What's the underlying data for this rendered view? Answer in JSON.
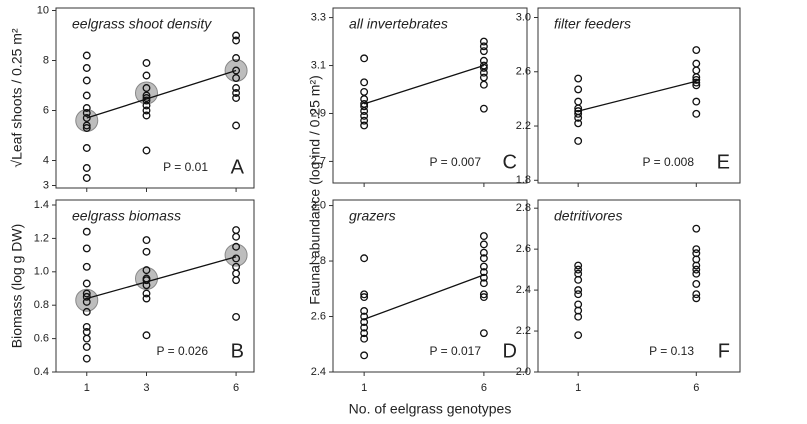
{
  "chart_data": [
    {
      "type": "scatter",
      "title": "eelgrass shoot density",
      "ylabel": "√Leaf shoots / 0.25 m²",
      "annotation": "P = 0.01",
      "panel": "A",
      "x": [
        1,
        1,
        1,
        1,
        1,
        1,
        1,
        1,
        1,
        1,
        1,
        1,
        3,
        3,
        3,
        3,
        3,
        3,
        3,
        3,
        3,
        3,
        6,
        6,
        6,
        6,
        6,
        6,
        6,
        6,
        6
      ],
      "values": [
        8.2,
        7.7,
        7.2,
        6.6,
        6.1,
        5.9,
        5.7,
        5.4,
        5.3,
        4.5,
        3.7,
        3.3,
        7.9,
        7.4,
        6.9,
        6.6,
        6.5,
        6.4,
        6.2,
        6.0,
        5.8,
        4.4,
        9.0,
        8.8,
        8.1,
        7.6,
        7.3,
        6.9,
        6.7,
        6.5,
        5.4
      ],
      "means": {
        "x": [
          1,
          3,
          6
        ],
        "values": [
          5.6,
          6.7,
          7.6
        ]
      },
      "fit": {
        "x": [
          1,
          6
        ],
        "values": [
          5.7,
          7.6
        ]
      },
      "xlim": [
        -0.03,
        6.6
      ],
      "xticks": [
        1,
        3,
        6
      ],
      "ylim": [
        2.9,
        10.1
      ],
      "yticks": [
        3,
        4,
        6,
        8,
        10
      ]
    },
    {
      "type": "scatter",
      "title": "eelgrass biomass",
      "ylabel": "Biomass (log g DW)",
      "xlabel": "No. of eelgrass genotypes",
      "annotation": "P = 0.026",
      "panel": "B",
      "x": [
        1,
        1,
        1,
        1,
        1,
        1,
        1,
        1,
        1,
        1,
        1,
        1,
        1,
        3,
        3,
        3,
        3,
        3,
        3,
        3,
        3,
        3,
        6,
        6,
        6,
        6,
        6,
        6,
        6,
        6
      ],
      "values": [
        1.24,
        1.14,
        1.03,
        0.93,
        0.87,
        0.85,
        0.82,
        0.76,
        0.67,
        0.64,
        0.6,
        0.55,
        0.48,
        1.19,
        1.12,
        1.01,
        0.96,
        0.95,
        0.92,
        0.87,
        0.84,
        0.62,
        1.25,
        1.21,
        1.15,
        1.08,
        1.03,
        0.99,
        0.95,
        0.73
      ],
      "means": {
        "x": [
          1,
          3,
          6
        ],
        "values": [
          0.83,
          0.96,
          1.1
        ]
      },
      "fit": {
        "x": [
          1,
          6
        ],
        "values": [
          0.84,
          1.09
        ]
      },
      "xlim": [
        -0.03,
        6.6
      ],
      "xticks": [
        1,
        3,
        6
      ],
      "ylim": [
        0.4,
        1.43
      ],
      "yticks": [
        0.4,
        0.6,
        0.8,
        {
          "value": 1,
          "label": "1.0"
        },
        1.2,
        1.4
      ]
    },
    {
      "type": "scatter",
      "title": "all invertebrates",
      "ylabel": "Faunal abundance (log ind / 0.25 m²)",
      "annotation": "P = 0.007",
      "panel": "C",
      "x": [
        1,
        1,
        1,
        1,
        1,
        1,
        1,
        1,
        1,
        1,
        6,
        6,
        6,
        6,
        6,
        6,
        6,
        6,
        6,
        6
      ],
      "values": [
        3.13,
        3.03,
        2.99,
        2.96,
        2.94,
        2.93,
        2.91,
        2.89,
        2.87,
        2.85,
        3.2,
        3.18,
        3.16,
        3.12,
        3.1,
        3.09,
        3.07,
        3.05,
        3.02,
        2.92
      ],
      "fit": {
        "x": [
          1,
          6
        ],
        "values": [
          2.94,
          3.1
        ]
      },
      "xlim": [
        -0.3,
        7.8
      ],
      "xticks": [
        1,
        6
      ],
      "ylim": [
        2.61,
        3.34
      ],
      "yticks": [
        2.7,
        2.9,
        3.1,
        3.3
      ]
    },
    {
      "type": "scatter",
      "title": "grazers",
      "annotation": "P = 0.017",
      "panel": "D",
      "x": [
        1,
        1,
        1,
        1,
        1,
        1,
        1,
        1,
        1,
        1,
        6,
        6,
        6,
        6,
        6,
        6,
        6,
        6,
        6,
        6,
        6
      ],
      "values": [
        2.81,
        2.68,
        2.67,
        2.62,
        2.6,
        2.58,
        2.56,
        2.54,
        2.52,
        2.46,
        2.89,
        2.86,
        2.83,
        2.81,
        2.78,
        2.76,
        2.74,
        2.72,
        2.68,
        2.67,
        2.54
      ],
      "fit": {
        "x": [
          1,
          6
        ],
        "values": [
          2.59,
          2.75
        ]
      },
      "xlim": [
        -0.3,
        7.8
      ],
      "xticks": [
        1,
        6
      ],
      "ylim": [
        2.4,
        3.02
      ],
      "yticks": [
        2.4,
        2.6,
        2.8,
        {
          "value": 3,
          "label": "3.0"
        }
      ]
    },
    {
      "type": "scatter",
      "title": "filter feeders",
      "annotation": "P = 0.008",
      "panel": "E",
      "x": [
        1,
        1,
        1,
        1,
        1,
        1,
        1,
        1,
        1,
        6,
        6,
        6,
        6,
        6,
        6,
        6,
        6,
        6
      ],
      "values": [
        2.55,
        2.47,
        2.38,
        2.33,
        2.31,
        2.29,
        2.26,
        2.22,
        2.09,
        2.76,
        2.66,
        2.61,
        2.56,
        2.54,
        2.52,
        2.5,
        2.38,
        2.29
      ],
      "fit": {
        "x": [
          1,
          6
        ],
        "values": [
          2.31,
          2.53
        ]
      },
      "xlim": [
        -0.7,
        7.85
      ],
      "xticks": [
        1,
        6
      ],
      "ylim": [
        1.78,
        3.07
      ],
      "yticks": [
        1.8,
        2.2,
        2.6,
        {
          "value": 3,
          "label": "3.0"
        }
      ]
    },
    {
      "type": "scatter",
      "title": "detritivores",
      "annotation": "P = 0.13",
      "panel": "F",
      "x": [
        1,
        1,
        1,
        1,
        1,
        1,
        1,
        1,
        1,
        1,
        6,
        6,
        6,
        6,
        6,
        6,
        6,
        6,
        6,
        6
      ],
      "values": [
        2.52,
        2.5,
        2.48,
        2.45,
        2.4,
        2.38,
        2.33,
        2.3,
        2.27,
        2.18,
        2.7,
        2.6,
        2.58,
        2.55,
        2.52,
        2.5,
        2.48,
        2.43,
        2.38,
        2.36
      ],
      "xlim": [
        -0.7,
        7.85
      ],
      "xticks": [
        1,
        6
      ],
      "ylim": [
        2.0,
        2.84
      ],
      "yticks": [
        {
          "value": 2,
          "label": "2.0"
        },
        2.2,
        2.4,
        2.6,
        2.8
      ]
    }
  ]
}
